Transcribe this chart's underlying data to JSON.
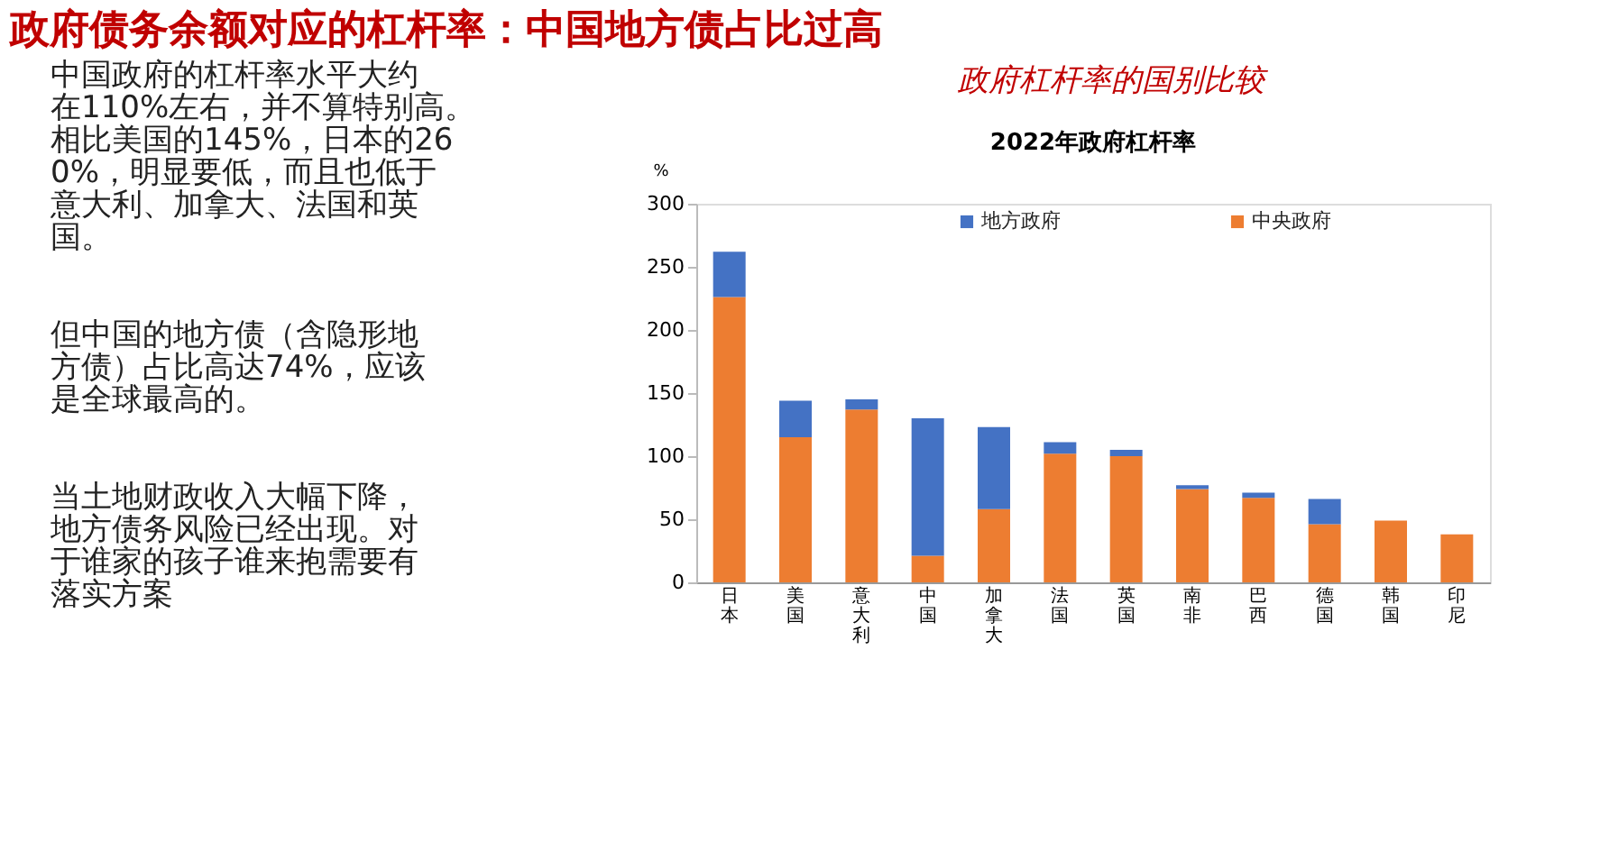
{
  "chart_data": {
    "type": "bar",
    "title": "2022年政府杠杆率",
    "ylabel": "%",
    "categories": [
      "日本",
      "美国",
      "意大利",
      "中国",
      "加拿大",
      "法国",
      "英国",
      "南非",
      "巴西",
      "德国",
      "韩国",
      "印尼"
    ],
    "stacked": true,
    "series": [
      {
        "name": "中央政府",
        "color": "#ed7d31",
        "values": [
          226,
          115,
          137,
          21,
          58,
          102,
          100,
          74,
          67,
          46,
          49,
          38
        ]
      },
      {
        "name": "地方政府",
        "color": "#4472c4",
        "values": [
          36,
          29,
          8,
          109,
          65,
          9,
          5,
          3,
          4,
          20,
          null,
          null
        ]
      }
    ],
    "ylim": [
      0,
      300
    ],
    "yticks": [
      0,
      50,
      100,
      150,
      200,
      250,
      300
    ],
    "grid": false,
    "legend": "top",
    "annotations": [
      "政府债务余额对应的杠杆率：中国地方债占比过高",
      "政府杠杆率的国别比较",
      "中国政府的杠杆率水平大约在110%左右，并不算特别高。相比美国的145%，日本的260%，明显要低，而且也低于意大利、加拿大、法国和英国。",
      "但中国的地方债（含隐形地方债）占比高达74%，应该是全球最高的。",
      "当土地财政收入大幅下降，地方债务风险已经出现。对于谁家的孩子谁来抱需要有落实方案"
    ]
  }
}
